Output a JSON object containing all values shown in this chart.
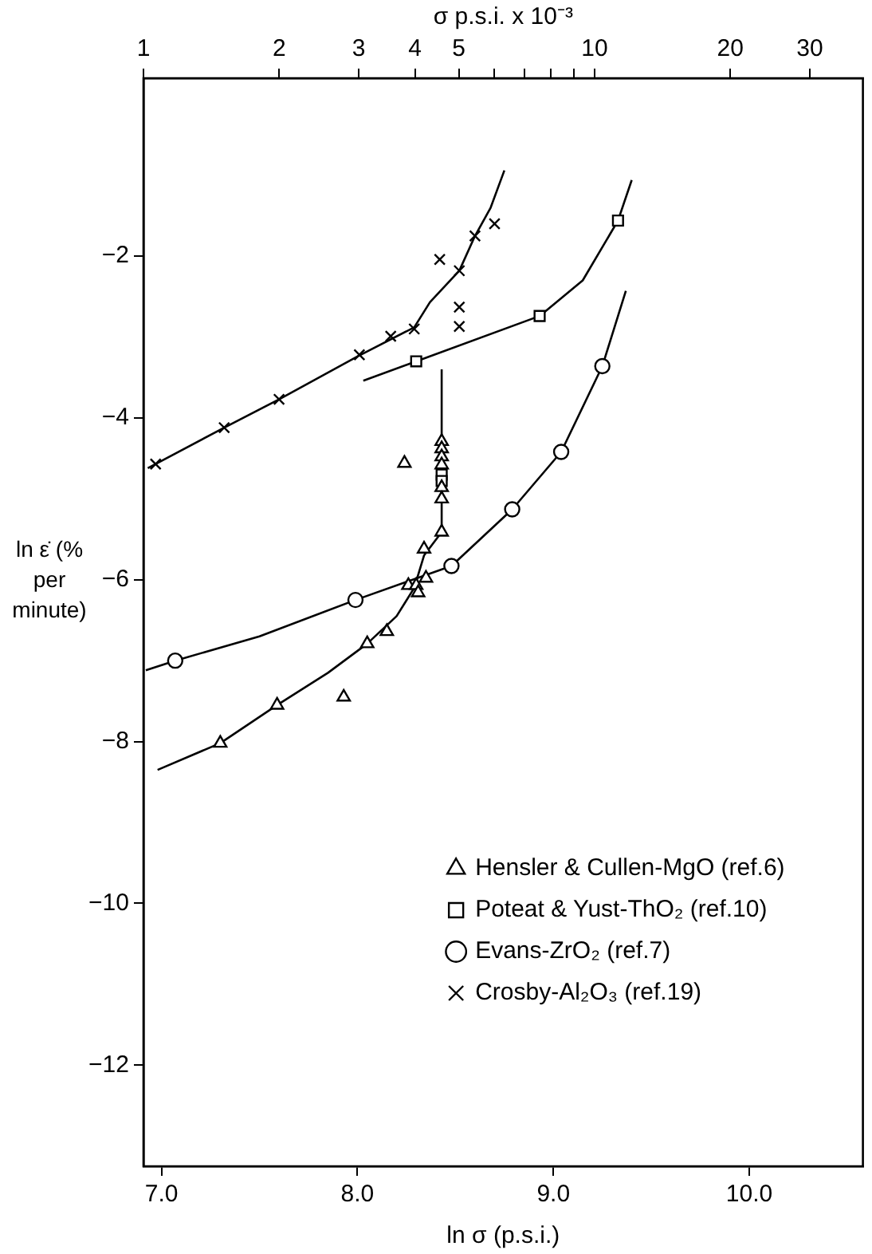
{
  "chart_data": {
    "type": "scatter",
    "xlabel": "ln σ (p.s.i.)",
    "x2label": "σ p.s.i. x 10⁻³",
    "ylabel": "ln ε̇ (% per minute)",
    "xlim": [
      6.908,
      10.58
    ],
    "xticks": [
      {
        "value": 7,
        "label": "7.0"
      },
      {
        "value": 8,
        "label": "8.0"
      },
      {
        "value": 9,
        "label": "9.0"
      },
      {
        "value": 10,
        "label": "10.0"
      }
    ],
    "x2lim": [
      1,
      39.35
    ],
    "x2ticks": [
      1,
      2,
      3,
      4,
      5,
      {
        "value": 6,
        "label": null
      },
      {
        "value": 7,
        "label": null
      },
      {
        "value": 8,
        "label": null
      },
      {
        "value": 9,
        "label": null
      },
      10,
      20,
      30
    ],
    "log": "x2",
    "ylim": [
      -13.25,
      0.2
    ],
    "yticks": [
      {
        "value": -2,
        "label": "−2"
      },
      {
        "value": -4,
        "label": "−4"
      },
      {
        "value": -6,
        "label": "−6"
      },
      {
        "value": -8,
        "label": "−8"
      },
      {
        "value": -10,
        "label": "−10"
      },
      {
        "value": -12,
        "label": "−12"
      }
    ],
    "grid": false,
    "legend": "bottom right",
    "series": [
      {
        "name": "Hensler & Cullen-MgO (ref.6)",
        "type": "scatter",
        "marker": "triangle",
        "color": "#000000",
        "x": [
          7.3,
          7.59,
          7.93,
          8.05,
          8.15,
          8.26,
          8.3,
          8.31,
          8.35,
          8.34,
          8.43,
          8.24,
          8.43,
          8.43,
          8.43,
          8.43,
          8.43,
          8.43
        ],
        "values": [
          -8.02,
          -7.55,
          -7.45,
          -6.79,
          -6.64,
          -6.07,
          -6.07,
          -6.16,
          -5.98,
          -5.62,
          -5.41,
          -4.56,
          -4.29,
          -4.38,
          -4.48,
          -4.58,
          -4.86,
          -5.0
        ]
      },
      {
        "name": "Poteat & Yust-ThO₂ (ref.10)",
        "type": "scatter",
        "marker": "square",
        "color": "#000000",
        "x": [
          8.3,
          8.93,
          9.33,
          8.43,
          8.43
        ],
        "values": [
          -3.3,
          -2.74,
          -1.56,
          -4.7,
          -4.78
        ]
      },
      {
        "name": "Evans-ZrO₂ (ref.7)",
        "type": "scatter",
        "marker": "circle",
        "color": "#000000",
        "x": [
          7.07,
          7.99,
          8.48,
          8.79,
          9.04,
          9.25
        ],
        "values": [
          -7.0,
          -6.25,
          -5.83,
          -5.13,
          -4.42,
          -3.36
        ]
      },
      {
        "name": "Crosby-Al₂O₃ (ref.19)",
        "type": "scatter",
        "marker": "cross",
        "color": "#000000",
        "x": [
          6.97,
          7.32,
          7.6,
          8.01,
          8.17,
          8.29,
          8.42,
          8.52,
          8.52,
          8.52,
          8.6,
          8.7
        ],
        "values": [
          -4.57,
          -4.12,
          -3.77,
          -3.22,
          -2.99,
          -2.9,
          -2.04,
          -2.18,
          -2.63,
          -2.87,
          -1.75,
          -1.6
        ]
      },
      {
        "type": "line",
        "marker": "none",
        "color": "#000000",
        "x": [
          6.98,
          7.3,
          7.59,
          7.85,
          8.05,
          8.2,
          8.29,
          8.34,
          8.43,
          8.43
        ],
        "values": [
          -8.35,
          -8.02,
          -7.55,
          -7.15,
          -6.79,
          -6.45,
          -6.1,
          -5.7,
          -5.41,
          -3.4
        ]
      },
      {
        "type": "line",
        "marker": "none",
        "color": "#000000",
        "x": [
          8.03,
          8.3,
          8.93,
          9.15,
          9.33,
          9.4
        ],
        "values": [
          -3.54,
          -3.3,
          -2.74,
          -2.3,
          -1.56,
          -1.06
        ]
      },
      {
        "type": "line",
        "marker": "none",
        "color": "#000000",
        "x": [
          6.92,
          7.07,
          7.5,
          7.99,
          8.48,
          8.79,
          9.04,
          9.25,
          9.37
        ],
        "values": [
          -7.12,
          -7.0,
          -6.7,
          -6.25,
          -5.83,
          -5.13,
          -4.42,
          -3.36,
          -2.43
        ]
      },
      {
        "type": "line",
        "marker": "none",
        "color": "#000000",
        "x": [
          6.93,
          7.32,
          7.6,
          8.0,
          8.29,
          8.37,
          8.52,
          8.6,
          8.68,
          8.75
        ],
        "values": [
          -4.62,
          -4.12,
          -3.77,
          -3.24,
          -2.88,
          -2.57,
          -2.18,
          -1.75,
          -1.4,
          -0.94
        ]
      }
    ]
  }
}
